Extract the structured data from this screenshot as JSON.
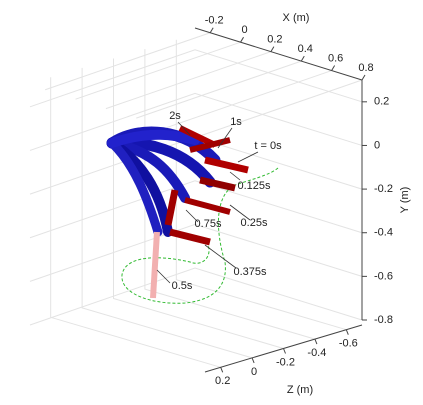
{
  "chart_data": {
    "type": "3d",
    "xlabel": "X (m)",
    "ylabel": "Y (m)",
    "zlabel": "Z (m)",
    "xlim": [
      -0.3,
      0.8
    ],
    "xticks": [
      -0.2,
      0,
      0.2,
      0.4,
      0.6,
      0.8
    ],
    "ylim": [
      -0.8,
      0.3
    ],
    "yticks": [
      0.2,
      0,
      -0.2,
      -0.4,
      -0.6,
      -0.8
    ],
    "zlim": [
      -0.7,
      0.3
    ],
    "zticks": [
      0.2,
      0,
      -0.2,
      -0.4,
      -0.6
    ],
    "grid": true,
    "annotations": [
      "2s",
      "1s",
      "t = 0s",
      "0.125s",
      "0.25s",
      "0.75s",
      "0.375s",
      "0.5s"
    ]
  }
}
